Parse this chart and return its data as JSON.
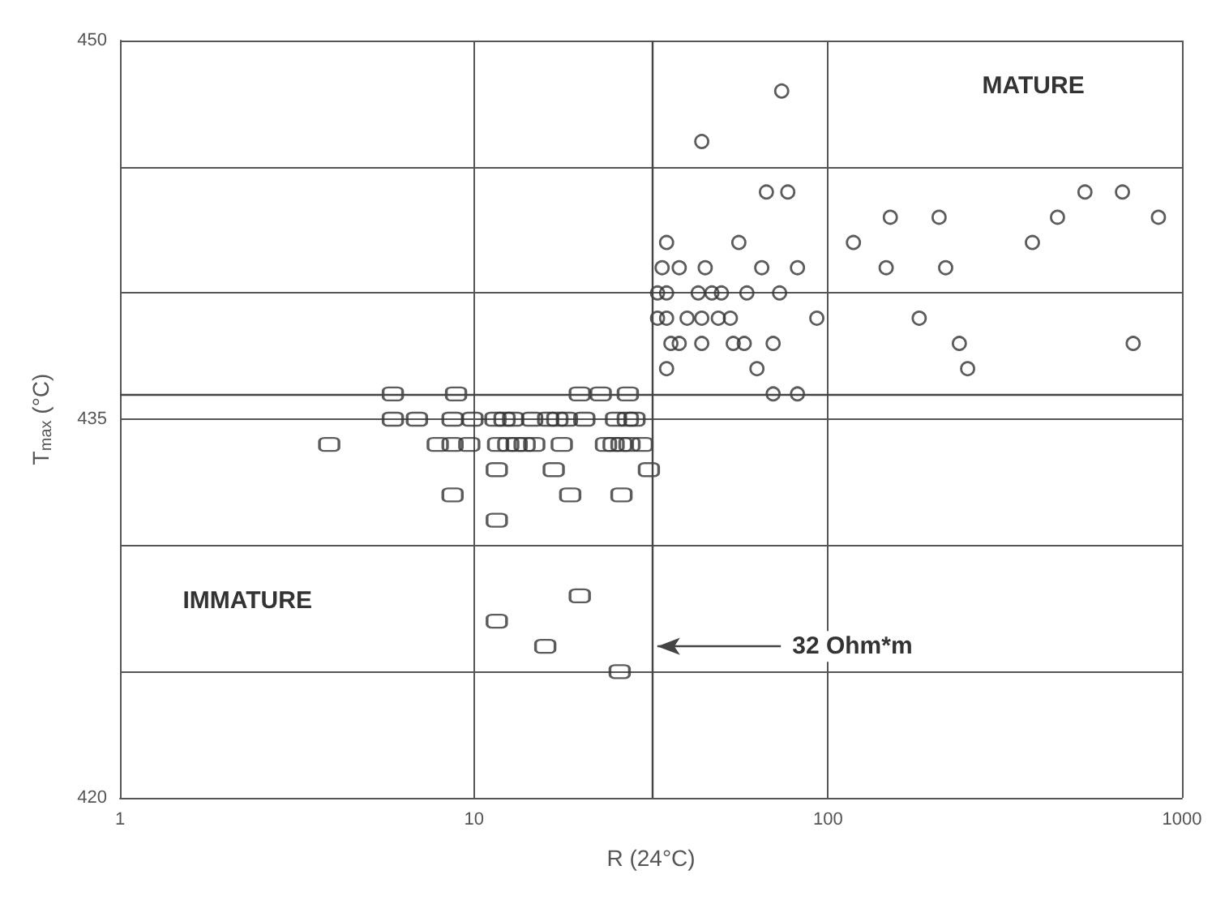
{
  "chart_data": {
    "type": "scatter",
    "xlabel": "R (24°C)",
    "ylabel": "T$_{max}$ (°C)",
    "log": "x",
    "xlim": [
      1,
      1000
    ],
    "xticks": [
      1,
      10,
      100,
      1000
    ],
    "ylim": [
      420,
      450
    ],
    "yticks": [
      420,
      {
        "value": 425,
        "label": null
      },
      {
        "value": 430,
        "label": null
      },
      435,
      {
        "value": 440,
        "label": null
      },
      {
        "value": 445,
        "label": null
      },
      450
    ],
    "grid": true,
    "series": [
      {
        "color": "#333333",
        "marker": "square",
        "x": [
          5.9,
          8.9,
          19.9,
          22.8,
          27.2,
          5.9,
          6.9,
          8.7,
          9.9,
          11.5,
          12.2,
          12.9,
          14.6,
          16.2,
          17.2,
          18.3,
          20.5,
          25.2,
          27.2,
          28.4,
          3.9,
          7.9,
          8.7,
          9.7,
          11.7,
          12.5,
          13.2,
          13.9,
          14.8,
          17.7,
          23.6,
          24.8,
          26.1,
          27.5,
          29.9,
          11.6,
          16.8,
          31.2,
          8.7,
          18.7,
          26.1,
          11.6,
          19.9,
          11.6,
          15.9,
          25.8
        ],
        "values": [
          436,
          436,
          436,
          436,
          436,
          435,
          435,
          435,
          435,
          435,
          435,
          435,
          435,
          435,
          435,
          435,
          435,
          435,
          435,
          435,
          434,
          434,
          434,
          434,
          434,
          434,
          434,
          434,
          434,
          434,
          434,
          434,
          434,
          434,
          434,
          433,
          433,
          433,
          432,
          432,
          432,
          431,
          428,
          427,
          426,
          425
        ]
      },
      {
        "color": "#333333",
        "marker": "circle",
        "x": [
          74,
          44,
          67,
          77,
          35,
          56,
          118,
          150,
          206,
          378,
          445,
          532,
          679,
          858,
          34,
          38,
          45,
          65,
          82,
          146,
          215,
          33,
          35,
          43,
          47,
          50,
          59,
          73,
          33,
          35,
          40,
          44,
          49,
          53,
          93,
          181,
          36,
          38,
          44,
          54,
          58,
          70,
          235,
          728,
          35,
          63,
          248,
          70,
          82
        ],
        "values": [
          448,
          446,
          444,
          444,
          442,
          442,
          442,
          443,
          443,
          442,
          443,
          444,
          444,
          443,
          441,
          441,
          441,
          441,
          441,
          441,
          441,
          440,
          440,
          440,
          440,
          440,
          440,
          440,
          439,
          439,
          439,
          439,
          439,
          439,
          439,
          439,
          438,
          438,
          438,
          438,
          438,
          438,
          438,
          438,
          437,
          437,
          437,
          436,
          436
        ]
      }
    ],
    "ref_lines": [
      {
        "axis": "x",
        "value": 32,
        "label": "32 Ohm*m"
      },
      {
        "axis": "y",
        "value": 436
      }
    ],
    "annotations": [
      "MATURE",
      "IMMATURE"
    ]
  }
}
